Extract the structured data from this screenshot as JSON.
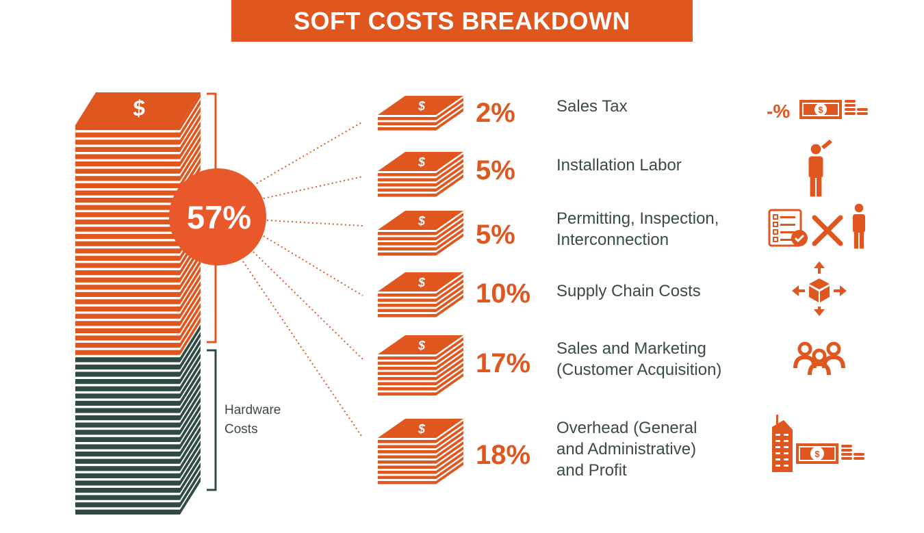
{
  "title": "SOFT COSTS BREAKDOWN",
  "colors": {
    "accent": "#e0561f",
    "hardware": "#2f4a45",
    "text": "#3a4a47",
    "white": "#ffffff"
  },
  "total_badge": "57%",
  "hardware_label": [
    "Hardware",
    "Costs"
  ],
  "chart_data": {
    "type": "table",
    "total": {
      "label": "57%",
      "value": 57
    },
    "other": {
      "label": "Hardware Costs",
      "value": 43
    },
    "items": [
      {
        "pct": "2%",
        "value": 2,
        "label": [
          "Sales Tax"
        ],
        "icon": "tax-money-coins-icon"
      },
      {
        "pct": "5%",
        "value": 5,
        "label": [
          "Installation Labor"
        ],
        "icon": "worker-icon"
      },
      {
        "pct": "5%",
        "value": 5,
        "label": [
          "Permitting, Inspection,",
          "Interconnection"
        ],
        "icon": "checklist-tools-worker-icon"
      },
      {
        "pct": "10%",
        "value": 10,
        "label": [
          "Supply Chain Costs"
        ],
        "icon": "box-arrows-icon"
      },
      {
        "pct": "17%",
        "value": 17,
        "label": [
          "Sales and Marketing",
          "(Customer Acquisition)"
        ],
        "icon": "people-group-icon"
      },
      {
        "pct": "18%",
        "value": 18,
        "label": [
          "Overhead (General",
          "and Administrative)",
          "and Profit"
        ],
        "icon": "building-money-icon"
      }
    ]
  }
}
